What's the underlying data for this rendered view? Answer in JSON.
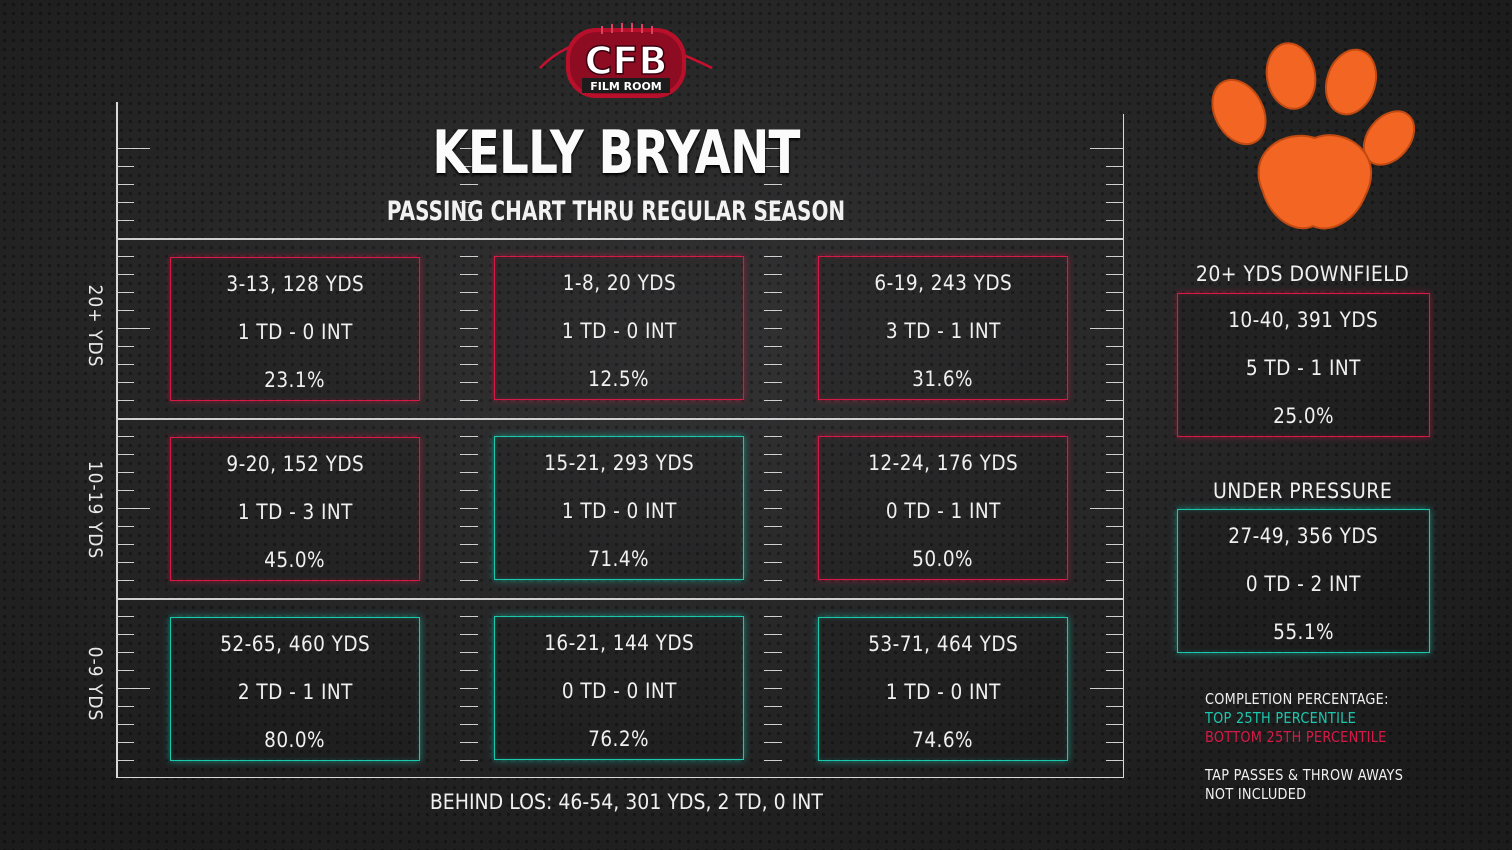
{
  "logo": {
    "line1": "CFB",
    "line2": "FILM ROOM"
  },
  "title": "KELLY BRYANT",
  "subtitle": "PASSING CHART THRU REGULAR SEASON",
  "colors": {
    "red": "#d61a47",
    "teal": "#1cc8ad",
    "clemson_orange": "#f26522"
  },
  "zones": {
    "deep": {
      "label": "20+ YDS"
    },
    "mid": {
      "label": "10-19 YDS"
    },
    "short": {
      "label": "0-9 YDS"
    }
  },
  "grid": {
    "deep_left": {
      "line1": "3-13, 128 YDS",
      "line2": "1 TD - 0 INT",
      "line3": "23.1%",
      "tier": "bottom"
    },
    "deep_middle": {
      "line1": "1-8, 20 YDS",
      "line2": "1 TD - 0 INT",
      "line3": "12.5%",
      "tier": "bottom"
    },
    "deep_right": {
      "line1": "6-19, 243 YDS",
      "line2": "3 TD - 1 INT",
      "line3": "31.6%",
      "tier": "bottom"
    },
    "mid_left": {
      "line1": "9-20, 152 YDS",
      "line2": "1 TD - 3 INT",
      "line3": "45.0%",
      "tier": "bottom"
    },
    "mid_middle": {
      "line1": "15-21, 293 YDS",
      "line2": "1 TD - 0 INT",
      "line3": "71.4%",
      "tier": "top"
    },
    "mid_right": {
      "line1": "12-24, 176 YDS",
      "line2": "0 TD - 1 INT",
      "line3": "50.0%",
      "tier": "bottom"
    },
    "short_left": {
      "line1": "52-65, 460 YDS",
      "line2": "2 TD - 1 INT",
      "line3": "80.0%",
      "tier": "top"
    },
    "short_middle": {
      "line1": "16-21, 144 YDS",
      "line2": "0 TD - 0 INT",
      "line3": "76.2%",
      "tier": "top"
    },
    "short_right": {
      "line1": "53-71, 464 YDS",
      "line2": "1 TD - 0 INT",
      "line3": "74.6%",
      "tier": "top"
    }
  },
  "behind_los": "BEHIND LOS: 46-54, 301 YDS, 2 TD, 0 INT",
  "sidebar": {
    "downfield": {
      "heading": "20+ YDS DOWNFIELD",
      "line1": "10-40, 391 YDS",
      "line2": "5 TD - 1 INT",
      "line3": "25.0%",
      "tier": "bottom"
    },
    "pressure": {
      "heading": "UNDER PRESSURE",
      "line1": "27-49, 356 YDS",
      "line2": "0 TD - 2 INT",
      "line3": "55.1%",
      "tier": "top"
    }
  },
  "legend": {
    "heading": "COMPLETION PERCENTAGE:",
    "top": "TOP 25TH PERCENTILE",
    "bottom": "BOTTOM 25TH PERCENTILE",
    "note1": "TAP PASSES & THROW AWAYS",
    "note2": "NOT INCLUDED"
  },
  "team_logo": {
    "icon": "tiger-paw-icon"
  }
}
